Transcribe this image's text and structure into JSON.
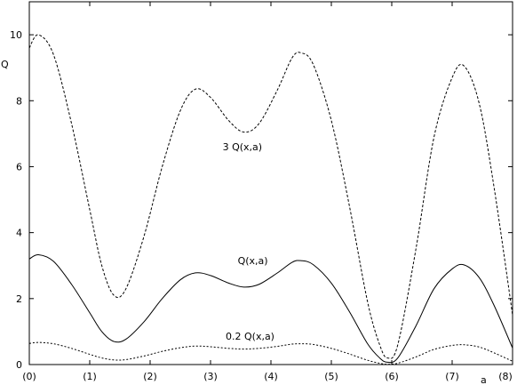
{
  "chart_data": {
    "type": "line",
    "xlabel": "a",
    "ylabel": "Q",
    "xlim": [
      0,
      8
    ],
    "ylim": [
      0,
      11
    ],
    "x_ticks": [
      0,
      1,
      2,
      3,
      4,
      5,
      6,
      7,
      8
    ],
    "x_tick_labels": [
      "(0)",
      "(1)",
      "(2)",
      "(3)",
      "(4)",
      "(5)",
      "(6)",
      "(7)",
      "(8)"
    ],
    "y_ticks": [
      0,
      2,
      4,
      6,
      8,
      10
    ],
    "y_tick_labels": [
      "0",
      "2",
      "4",
      "6",
      "8",
      "10"
    ],
    "grid": false,
    "x": [
      0,
      0.15,
      0.4,
      0.7,
      1.0,
      1.2,
      1.4,
      1.6,
      1.9,
      2.2,
      2.5,
      2.75,
      3.0,
      3.3,
      3.55,
      3.8,
      4.1,
      4.35,
      4.5,
      4.7,
      5.0,
      5.3,
      5.6,
      5.8,
      5.93,
      6.1,
      6.4,
      6.7,
      7.0,
      7.2,
      7.45,
      7.7,
      8.0
    ],
    "series": [
      {
        "name": "3 Q(x,a)",
        "dash": "3,2",
        "values": [
          9.6,
          10.0,
          9.4,
          7.3,
          4.7,
          3.0,
          2.1,
          2.3,
          3.9,
          6.0,
          7.7,
          8.35,
          8.1,
          7.4,
          7.05,
          7.3,
          8.3,
          9.3,
          9.45,
          9.1,
          7.4,
          4.8,
          1.9,
          0.6,
          0.2,
          0.6,
          3.5,
          6.9,
          8.7,
          9.05,
          7.9,
          5.3,
          1.5
        ]
      },
      {
        "name": "Q(x,a)",
        "dash": "",
        "values": [
          3.2,
          3.33,
          3.13,
          2.43,
          1.57,
          1.0,
          0.7,
          0.77,
          1.3,
          2.0,
          2.57,
          2.78,
          2.7,
          2.47,
          2.35,
          2.43,
          2.77,
          3.1,
          3.15,
          3.03,
          2.47,
          1.6,
          0.63,
          0.2,
          0.07,
          0.2,
          1.17,
          2.3,
          2.9,
          3.02,
          2.63,
          1.77,
          0.5
        ]
      },
      {
        "name": "0.2 Q(x,a)",
        "dash": "2,2",
        "values": [
          0.64,
          0.67,
          0.63,
          0.49,
          0.31,
          0.2,
          0.14,
          0.15,
          0.26,
          0.4,
          0.51,
          0.56,
          0.54,
          0.49,
          0.47,
          0.49,
          0.55,
          0.62,
          0.63,
          0.61,
          0.49,
          0.32,
          0.13,
          0.04,
          0.01,
          0.04,
          0.23,
          0.46,
          0.58,
          0.6,
          0.53,
          0.35,
          0.1
        ]
      }
    ],
    "annotations": [
      {
        "text": "3 Q(x,a)",
        "x": 3.2,
        "y": 6.5
      },
      {
        "text": "Q(x,a)",
        "x": 3.45,
        "y": 3.05
      },
      {
        "text": "0.2 Q(x,a)",
        "x": 3.25,
        "y": 0.75
      }
    ]
  }
}
